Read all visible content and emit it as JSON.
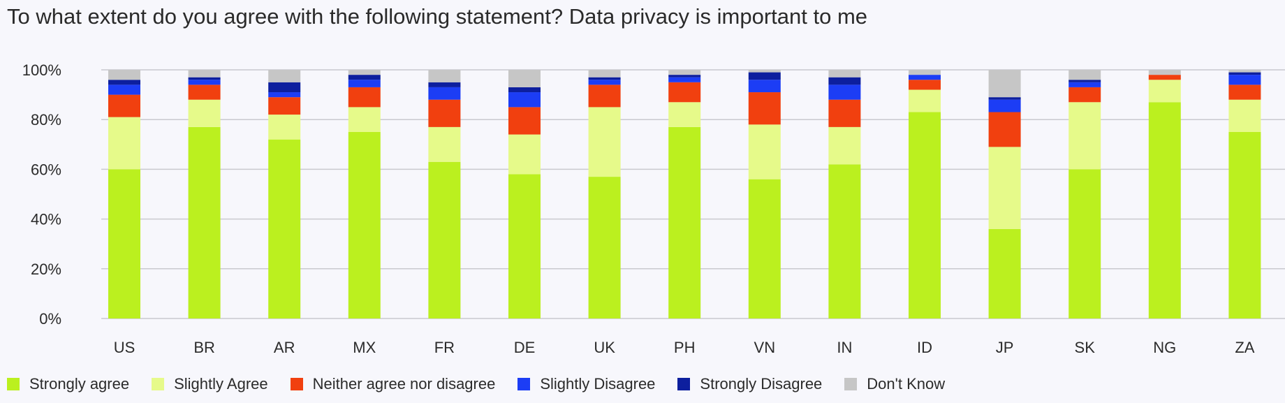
{
  "chart_data": {
    "type": "bar",
    "stacked": true,
    "title": "To what extent do you agree with the following statement? Data privacy is important to me",
    "xlabel": "",
    "ylabel": "",
    "ylim": [
      0,
      100
    ],
    "yticks": [
      "0%",
      "20%",
      "40%",
      "60%",
      "80%",
      "100%"
    ],
    "grid": true,
    "legend_position": "bottom",
    "categories": [
      "US",
      "BR",
      "AR",
      "MX",
      "FR",
      "DE",
      "UK",
      "PH",
      "VN",
      "IN",
      "ID",
      "JP",
      "SK",
      "NG",
      "ZA"
    ],
    "series": [
      {
        "name": "Strongly agree",
        "color": "#bbf01f",
        "values": [
          60,
          77,
          72,
          75,
          63,
          58,
          57,
          77,
          56,
          62,
          83,
          36,
          60,
          87,
          75
        ]
      },
      {
        "name": "Slightly Agree",
        "color": "#e6fa8a",
        "values": [
          21,
          11,
          10,
          10,
          14,
          16,
          28,
          10,
          22,
          15,
          9,
          33,
          27,
          9,
          13
        ]
      },
      {
        "name": "Neither agree nor disagree",
        "color": "#f1400f",
        "values": [
          9,
          6,
          7,
          8,
          11,
          11,
          9,
          8,
          13,
          11,
          4,
          14,
          6,
          2,
          6
        ]
      },
      {
        "name": "Slightly Disagree",
        "color": "#1c3df5",
        "values": [
          4,
          2,
          2,
          3,
          5,
          6,
          2,
          2,
          5,
          6,
          2,
          5,
          2,
          0,
          4
        ]
      },
      {
        "name": "Strongly Disagree",
        "color": "#0d1f9e",
        "values": [
          2,
          1,
          4,
          2,
          2,
          2,
          1,
          1,
          3,
          3,
          0,
          1,
          1,
          0,
          1
        ]
      },
      {
        "name": "Don't Know",
        "color": "#c6c6c6",
        "values": [
          4,
          3,
          5,
          2,
          5,
          7,
          3,
          2,
          1,
          3,
          2,
          11,
          4,
          2,
          1
        ]
      }
    ]
  }
}
